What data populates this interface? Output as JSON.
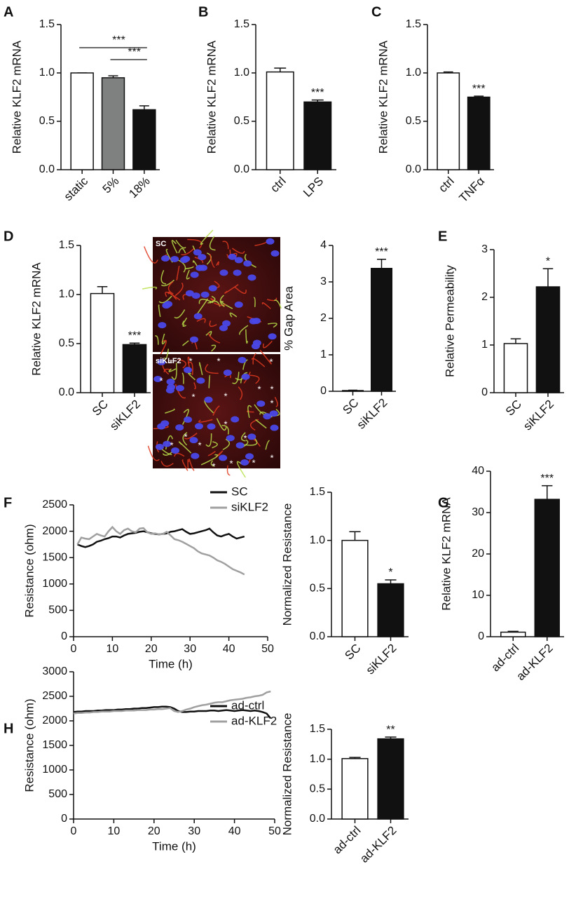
{
  "images": [
    {
      "label": "SC"
    },
    {
      "label": "siKLF2",
      "marker": "*"
    }
  ],
  "chart_data": [
    {
      "panel": "A",
      "type": "bar",
      "ylabel": "Relative KLF2 mRNA",
      "categories": [
        "static",
        "5%",
        "18%"
      ],
      "values": [
        1.0,
        0.95,
        0.62
      ],
      "errors": [
        0,
        0.02,
        0.04
      ],
      "colors": [
        "#ffffff",
        "#7f8080",
        "#111111"
      ],
      "ylim": [
        0,
        1.5
      ],
      "yticks": [
        {
          "value": 0,
          "label": "0.0"
        },
        {
          "value": 0.5,
          "label": "0.5"
        },
        {
          "value": 1,
          "label": "1.0"
        },
        {
          "value": 1.5,
          "label": "1.5"
        }
      ],
      "annotations": [
        {
          "text": "***",
          "from": "static",
          "to": "18%"
        },
        {
          "text": "***",
          "from": "5%",
          "to": "18%"
        }
      ]
    },
    {
      "panel": "B",
      "type": "bar",
      "ylabel": "Relative KLF2 mRNA",
      "categories": [
        "ctrl",
        "LPS"
      ],
      "values": [
        1.01,
        0.7
      ],
      "errors": [
        0.04,
        0.02
      ],
      "colors": [
        "#ffffff",
        "#111111"
      ],
      "ylim": [
        0,
        1.5
      ],
      "yticks": [
        {
          "value": 0,
          "label": "0.0"
        },
        {
          "value": 0.5,
          "label": "0.5"
        },
        {
          "value": 1,
          "label": "1.0"
        },
        {
          "value": 1.5,
          "label": "1.5"
        }
      ],
      "annotations": [
        {
          "text": "***",
          "over": "LPS"
        }
      ]
    },
    {
      "panel": "C",
      "type": "bar",
      "ylabel": "Relative KLF2 mRNA",
      "categories": [
        "ctrl",
        "TNFα"
      ],
      "values": [
        1.0,
        0.75
      ],
      "errors": [
        0.01,
        0.01
      ],
      "colors": [
        "#ffffff",
        "#111111"
      ],
      "ylim": [
        0,
        1.5
      ],
      "yticks": [
        {
          "value": 0,
          "label": "0.0"
        },
        {
          "value": 0.5,
          "label": "0.5"
        },
        {
          "value": 1,
          "label": "1.0"
        },
        {
          "value": 1.5,
          "label": "1.5"
        }
      ],
      "annotations": [
        {
          "text": "***",
          "over": "TNFα"
        }
      ]
    },
    {
      "panel": "D",
      "type": "bar",
      "ylabel": "Relative KLF2 mRNA",
      "categories": [
        "SC",
        "siKLF2"
      ],
      "values": [
        1.01,
        0.49
      ],
      "errors": [
        0.07,
        0.015
      ],
      "colors": [
        "#ffffff",
        "#111111"
      ],
      "ylim": [
        0,
        1.5
      ],
      "yticks": [
        {
          "value": 0,
          "label": "0.0"
        },
        {
          "value": 0.5,
          "label": "0.5"
        },
        {
          "value": 1,
          "label": "1.0"
        },
        {
          "value": 1.5,
          "label": "1.5"
        }
      ],
      "annotations": [
        {
          "text": "***",
          "over": "siKLF2"
        }
      ]
    },
    {
      "type": "bar",
      "ylabel": "% Gap Area",
      "categories": [
        "SC",
        "siKLF2"
      ],
      "values": [
        0.02,
        3.37
      ],
      "errors": [
        0.01,
        0.25
      ],
      "colors": [
        "#ffffff",
        "#111111"
      ],
      "ylim": [
        0,
        4
      ],
      "yticks": [
        0,
        1,
        2,
        3,
        4
      ],
      "annotations": [
        {
          "text": "***",
          "over": "siKLF2"
        }
      ]
    },
    {
      "panel": "E",
      "type": "bar",
      "ylabel": "Relative Permeability",
      "categories": [
        "SC",
        "siKLF2"
      ],
      "values": [
        1.03,
        2.22
      ],
      "errors": [
        0.1,
        0.38
      ],
      "colors": [
        "#ffffff",
        "#111111"
      ],
      "ylim": [
        0,
        3
      ],
      "yticks": [
        0,
        1,
        2,
        3
      ],
      "annotations": [
        {
          "text": "*",
          "over": "siKLF2"
        }
      ]
    },
    {
      "panel": "F",
      "type": "line",
      "ylabel": "Resistance (ohm)",
      "xlabel": "Time (h)",
      "x": [
        1,
        2,
        3,
        4,
        5,
        6,
        7,
        8,
        9,
        10,
        11,
        12,
        13,
        14,
        15,
        16,
        17,
        18,
        19,
        20,
        21,
        22,
        23,
        24,
        25,
        26,
        27,
        28,
        29,
        30,
        31,
        32,
        33,
        34,
        35,
        36,
        37,
        38,
        39,
        40,
        41,
        42,
        43,
        44
      ],
      "series": [
        {
          "name": "SC",
          "color": "#111111",
          "values": [
            1750,
            1720,
            1700,
            1720,
            1750,
            1800,
            1820,
            1850,
            1870,
            1900,
            1900,
            1880,
            1920,
            1950,
            1960,
            1970,
            1990,
            2000,
            1980,
            1960,
            1950,
            1940,
            1950,
            1960,
            1990,
            2000,
            2020,
            2040,
            1990,
            1950,
            1960,
            1980,
            2000,
            2020,
            2050,
            1980,
            1920,
            1900,
            1930,
            1950,
            1900,
            1860,
            1880,
            1900
          ]
        },
        {
          "name": "siKLF2",
          "color": "#a0a0a0",
          "values": [
            1750,
            1880,
            1860,
            1850,
            1900,
            1950,
            1920,
            1900,
            2000,
            2080,
            2000,
            1950,
            2020,
            2050,
            2000,
            1980,
            2050,
            2060,
            1980,
            1950,
            1960,
            1940,
            1950,
            1990,
            1920,
            1850,
            1830,
            1800,
            1760,
            1720,
            1680,
            1620,
            1580,
            1560,
            1540,
            1500,
            1450,
            1420,
            1380,
            1330,
            1280,
            1250,
            1220,
            1180
          ]
        }
      ],
      "xlim": [
        0,
        50
      ],
      "xticks": [
        0,
        10,
        20,
        30,
        40,
        50
      ],
      "ylim": [
        0,
        2500
      ],
      "yticks": [
        0,
        500,
        1000,
        1500,
        2000,
        2500
      ]
    },
    {
      "type": "bar",
      "ylabel": "Normalized Resistance",
      "categories": [
        "SC",
        "siKLF2"
      ],
      "values": [
        1.0,
        0.55
      ],
      "errors": [
        0.09,
        0.04
      ],
      "colors": [
        "#ffffff",
        "#111111"
      ],
      "ylim": [
        0,
        1.5
      ],
      "yticks": [
        {
          "value": 0,
          "label": "0.0"
        },
        {
          "value": 0.5,
          "label": "0.5"
        },
        {
          "value": 1,
          "label": "1.0"
        },
        {
          "value": 1.5,
          "label": "1.5"
        }
      ],
      "annotations": [
        {
          "text": "*",
          "over": "siKLF2"
        }
      ]
    },
    {
      "panel": "G",
      "type": "bar",
      "ylabel": "Relative KLF2 mRNA",
      "categories": [
        "ad-ctrl",
        "ad-KLF2"
      ],
      "values": [
        1.1,
        33.2
      ],
      "errors": [
        0.2,
        3.3
      ],
      "colors": [
        "#ffffff",
        "#111111"
      ],
      "ylim": [
        0,
        40
      ],
      "yticks": [
        0,
        10,
        20,
        30,
        40
      ],
      "annotations": [
        {
          "text": "***",
          "over": "ad-KLF2"
        }
      ]
    },
    {
      "panel": "H",
      "type": "line",
      "ylabel": "Resistance (ohm)",
      "xlabel": "Time (h)",
      "x": [
        0,
        1,
        2,
        3,
        4,
        5,
        6,
        7,
        8,
        9,
        10,
        11,
        12,
        13,
        14,
        15,
        16,
        17,
        18,
        19,
        20,
        21,
        22,
        23,
        24,
        25,
        26,
        27,
        28,
        29,
        30,
        31,
        32,
        33,
        34,
        35,
        36,
        37,
        38,
        39,
        40,
        41,
        42,
        43,
        44,
        45,
        46,
        47,
        48,
        49
      ],
      "series": [
        {
          "name": "ad-ctrl",
          "color": "#111111",
          "values": [
            2180,
            2190,
            2190,
            2200,
            2200,
            2200,
            2210,
            2210,
            2220,
            2220,
            2220,
            2230,
            2230,
            2240,
            2240,
            2250,
            2250,
            2260,
            2260,
            2270,
            2280,
            2280,
            2290,
            2290,
            2280,
            2250,
            2200,
            2180,
            2180,
            2190,
            2190,
            2200,
            2200,
            2200,
            2210,
            2210,
            2200,
            2210,
            2220,
            2210,
            2200,
            2210,
            2220,
            2210,
            2200,
            2210,
            2200,
            2180,
            2150,
            2050
          ]
        },
        {
          "name": "ad-KLF2",
          "color": "#a0a0a0",
          "values": [
            2150,
            2160,
            2160,
            2170,
            2170,
            2180,
            2180,
            2190,
            2190,
            2190,
            2200,
            2200,
            2200,
            2210,
            2210,
            2210,
            2220,
            2220,
            2220,
            2230,
            2230,
            2240,
            2240,
            2250,
            2260,
            2200,
            2180,
            2200,
            2230,
            2250,
            2280,
            2300,
            2320,
            2330,
            2350,
            2370,
            2380,
            2380,
            2400,
            2420,
            2430,
            2440,
            2450,
            2470,
            2480,
            2500,
            2510,
            2530,
            2580,
            2600
          ]
        }
      ],
      "xlim": [
        0,
        50
      ],
      "xticks": [
        0,
        10,
        20,
        30,
        40,
        50
      ],
      "ylim": [
        0,
        3000
      ],
      "yticks": [
        0,
        500,
        1000,
        1500,
        2000,
        2500,
        3000
      ]
    },
    {
      "type": "bar",
      "ylabel": "Normalized Resistance",
      "categories": [
        "ad-ctrl",
        "ad-KLF2"
      ],
      "values": [
        1.01,
        1.34
      ],
      "errors": [
        0.02,
        0.03
      ],
      "colors": [
        "#ffffff",
        "#111111"
      ],
      "ylim": [
        0,
        1.5
      ],
      "yticks": [
        {
          "value": 0,
          "label": "0.0"
        },
        {
          "value": 0.5,
          "label": "0.5"
        },
        {
          "value": 1,
          "label": "1.0"
        },
        {
          "value": 1.5,
          "label": "1.5"
        }
      ],
      "annotations": [
        {
          "text": "**",
          "over": "ad-KLF2"
        }
      ]
    }
  ]
}
